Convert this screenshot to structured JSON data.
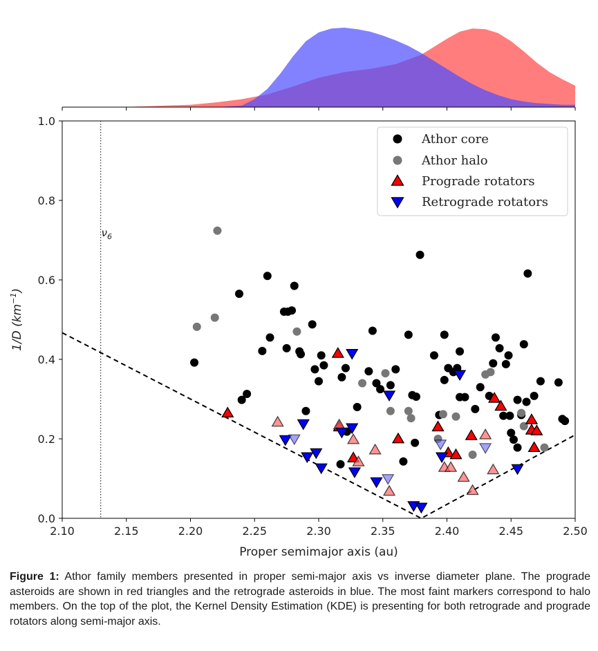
{
  "chart_data": [
    {
      "type": "area",
      "description_role": "kde",
      "xlim": [
        2.1,
        2.5
      ],
      "series": [
        {
          "legend_ref": "Prograde rotators",
          "color": "#ff6666",
          "x": [
            2.1,
            2.15,
            2.2,
            2.22,
            2.24,
            2.26,
            2.28,
            2.3,
            2.32,
            2.34,
            2.36,
            2.38,
            2.39,
            2.4,
            2.41,
            2.42,
            2.43,
            2.44,
            2.45,
            2.46,
            2.47,
            2.48,
            2.49,
            2.5
          ],
          "values": [
            0.0,
            0.003,
            0.03,
            0.06,
            0.1,
            0.16,
            0.26,
            0.37,
            0.44,
            0.48,
            0.54,
            0.66,
            0.76,
            0.86,
            0.95,
            0.99,
            0.98,
            0.93,
            0.83,
            0.7,
            0.56,
            0.44,
            0.35,
            0.27
          ]
        },
        {
          "legend_ref": "Retrograde rotators",
          "color": "#4d4dff",
          "x": [
            2.1,
            2.18,
            2.22,
            2.24,
            2.25,
            2.26,
            2.27,
            2.28,
            2.29,
            2.3,
            2.31,
            2.32,
            2.33,
            2.34,
            2.35,
            2.36,
            2.37,
            2.38,
            2.39,
            2.4,
            2.41,
            2.42,
            2.43,
            2.44,
            2.45,
            2.46,
            2.47,
            2.48,
            2.49,
            2.5
          ],
          "values": [
            0.0,
            0.0,
            0.0,
            0.02,
            0.1,
            0.23,
            0.42,
            0.64,
            0.83,
            0.94,
            0.99,
            1.0,
            0.98,
            0.95,
            0.9,
            0.84,
            0.77,
            0.68,
            0.58,
            0.48,
            0.38,
            0.29,
            0.21,
            0.15,
            0.1,
            0.07,
            0.05,
            0.04,
            0.03,
            0.03
          ]
        }
      ]
    },
    {
      "type": "scatter",
      "xlim": [
        2.1,
        2.5
      ],
      "ylim": [
        0.0,
        1.0
      ],
      "xlabel": "Proper semimajor axis (au)",
      "ylabel_parts": {
        "base": "1/D (km",
        "sup": "−1",
        "end": ")"
      },
      "xticks": [
        "2.10",
        "2.15",
        "2.20",
        "2.25",
        "2.30",
        "2.35",
        "2.40",
        "2.45",
        "2.50"
      ],
      "yticks": [
        "0.0",
        "0.2",
        "0.4",
        "0.6",
        "0.8",
        "1.0"
      ],
      "legend_position": "upper-right",
      "legend": [
        "Athor core",
        "Athor halo",
        "Prograde rotators",
        "Retrograde rotators"
      ],
      "resonance": {
        "x": 2.13,
        "label_base": "ν",
        "label_sub": "6"
      },
      "vshape": {
        "apex": [
          2.38,
          0.0
        ],
        "left_end": [
          2.1,
          0.467
        ],
        "right_end": [
          2.5,
          0.21
        ]
      },
      "series": [
        {
          "name": "Athor core",
          "color": "#000000",
          "points": [
            [
              2.203,
              0.392
            ],
            [
              2.24,
              0.298
            ],
            [
              2.244,
              0.313
            ],
            [
              2.238,
              0.565
            ],
            [
              2.26,
              0.61
            ],
            [
              2.256,
              0.421
            ],
            [
              2.262,
              0.455
            ],
            [
              2.273,
              0.52
            ],
            [
              2.276,
              0.52
            ],
            [
              2.279,
              0.523
            ],
            [
              2.281,
              0.585
            ],
            [
              2.275,
              0.428
            ],
            [
              2.285,
              0.42
            ],
            [
              2.286,
              0.413
            ],
            [
              2.29,
              0.27
            ],
            [
              2.295,
              0.488
            ],
            [
              2.297,
              0.375
            ],
            [
              2.3,
              0.345
            ],
            [
              2.302,
              0.41
            ],
            [
              2.304,
              0.385
            ],
            [
              2.318,
              0.355
            ],
            [
              2.321,
              0.378
            ],
            [
              2.322,
              0.218
            ],
            [
              2.317,
              0.136
            ],
            [
              2.33,
              0.28
            ],
            [
              2.339,
              0.37
            ],
            [
              2.342,
              0.472
            ],
            [
              2.345,
              0.34
            ],
            [
              2.348,
              0.325
            ],
            [
              2.356,
              0.335
            ],
            [
              2.36,
              0.375
            ],
            [
              2.366,
              0.143
            ],
            [
              2.37,
              0.462
            ],
            [
              2.373,
              0.31
            ],
            [
              2.375,
              0.19
            ],
            [
              2.376,
              0.306
            ],
            [
              2.379,
              0.663
            ],
            [
              2.39,
              0.41
            ],
            [
              2.394,
              0.26
            ],
            [
              2.398,
              0.462
            ],
            [
              2.398,
              0.348
            ],
            [
              2.401,
              0.378
            ],
            [
              2.405,
              0.368
            ],
            [
              2.408,
              0.378
            ],
            [
              2.41,
              0.42
            ],
            [
              2.41,
              0.305
            ],
            [
              2.414,
              0.305
            ],
            [
              2.422,
              0.275
            ],
            [
              2.426,
              0.33
            ],
            [
              2.433,
              0.308
            ],
            [
              2.436,
              0.39
            ],
            [
              2.438,
              0.455
            ],
            [
              2.441,
              0.428
            ],
            [
              2.444,
              0.258
            ],
            [
              2.446,
              0.388
            ],
            [
              2.448,
              0.41
            ],
            [
              2.449,
              0.258
            ],
            [
              2.45,
              0.215
            ],
            [
              2.452,
              0.198
            ],
            [
              2.455,
              0.178
            ],
            [
              2.455,
              0.298
            ],
            [
              2.458,
              0.26
            ],
            [
              2.46,
              0.438
            ],
            [
              2.462,
              0.293
            ],
            [
              2.463,
              0.616
            ],
            [
              2.468,
              0.308
            ],
            [
              2.473,
              0.345
            ],
            [
              2.487,
              0.342
            ],
            [
              2.49,
              0.25
            ],
            [
              2.492,
              0.245
            ]
          ]
        },
        {
          "name": "Athor halo",
          "color": "#777777",
          "points": [
            [
              2.205,
              0.482
            ],
            [
              2.219,
              0.505
            ],
            [
              2.221,
              0.724
            ],
            [
              2.283,
              0.47
            ],
            [
              2.334,
              0.34
            ],
            [
              2.352,
              0.365
            ],
            [
              2.356,
              0.27
            ],
            [
              2.37,
              0.27
            ],
            [
              2.372,
              0.252
            ],
            [
              2.393,
              0.2
            ],
            [
              2.397,
              0.262
            ],
            [
              2.407,
              0.256
            ],
            [
              2.42,
              0.16
            ],
            [
              2.43,
              0.362
            ],
            [
              2.434,
              0.368
            ],
            [
              2.458,
              0.265
            ],
            [
              2.46,
              0.232
            ],
            [
              2.476,
              0.178
            ]
          ]
        },
        {
          "name": "Prograde rotators",
          "color": "#ff0000",
          "points": [
            [
              2.229,
              0.265
            ],
            [
              2.315,
              0.415
            ],
            [
              2.316,
              0.23
            ],
            [
              2.327,
              0.152
            ],
            [
              2.362,
              0.2
            ],
            [
              2.393,
              0.23
            ],
            [
              2.401,
              0.165
            ],
            [
              2.407,
              0.16
            ],
            [
              2.419,
              0.208
            ],
            [
              2.437,
              0.302
            ],
            [
              2.442,
              0.282
            ],
            [
              2.466,
              0.248
            ],
            [
              2.466,
              0.222
            ],
            [
              2.47,
              0.22
            ],
            [
              2.468,
              0.178
            ]
          ]
        },
        {
          "name": "Prograde halo",
          "color": "#ff6666",
          "points": [
            [
              2.268,
              0.242
            ],
            [
              2.316,
              0.235
            ],
            [
              2.327,
              0.198
            ],
            [
              2.331,
              0.142
            ],
            [
              2.344,
              0.172
            ],
            [
              2.355,
              0.068
            ],
            [
              2.398,
              0.128
            ],
            [
              2.403,
              0.128
            ],
            [
              2.413,
              0.103
            ],
            [
              2.42,
              0.07
            ],
            [
              2.43,
              0.21
            ],
            [
              2.436,
              0.122
            ]
          ]
        },
        {
          "name": "Retrograde rotators",
          "color": "#0000ff",
          "points": [
            [
              2.274,
              0.198
            ],
            [
              2.288,
              0.238
            ],
            [
              2.291,
              0.155
            ],
            [
              2.298,
              0.165
            ],
            [
              2.302,
              0.127
            ],
            [
              2.318,
              0.217
            ],
            [
              2.326,
              0.228
            ],
            [
              2.328,
              0.117
            ],
            [
              2.326,
              0.415
            ],
            [
              2.345,
              0.092
            ],
            [
              2.355,
              0.31
            ],
            [
              2.374,
              0.032
            ],
            [
              2.38,
              0.028
            ],
            [
              2.396,
              0.155
            ],
            [
              2.41,
              0.362
            ],
            [
              2.455,
              0.125
            ]
          ]
        },
        {
          "name": "Retrograde halo",
          "color": "#6666ff",
          "points": [
            [
              2.281,
              0.2
            ],
            [
              2.354,
              0.1
            ],
            [
              2.395,
              0.187
            ],
            [
              2.43,
              0.178
            ]
          ]
        }
      ]
    }
  ],
  "caption": {
    "label": "Figure 1:",
    "text": " Athor family members presented in proper semi-major axis vs inverse diameter plane. The prograde asteroids are shown in red triangles and the retrograde asteroids in blue. The most faint markers correspond to halo members. On the top of the plot, the Kernel Density Estimation (KDE) is presenting for both retrograde and prograde rotators along semi-major axis."
  }
}
